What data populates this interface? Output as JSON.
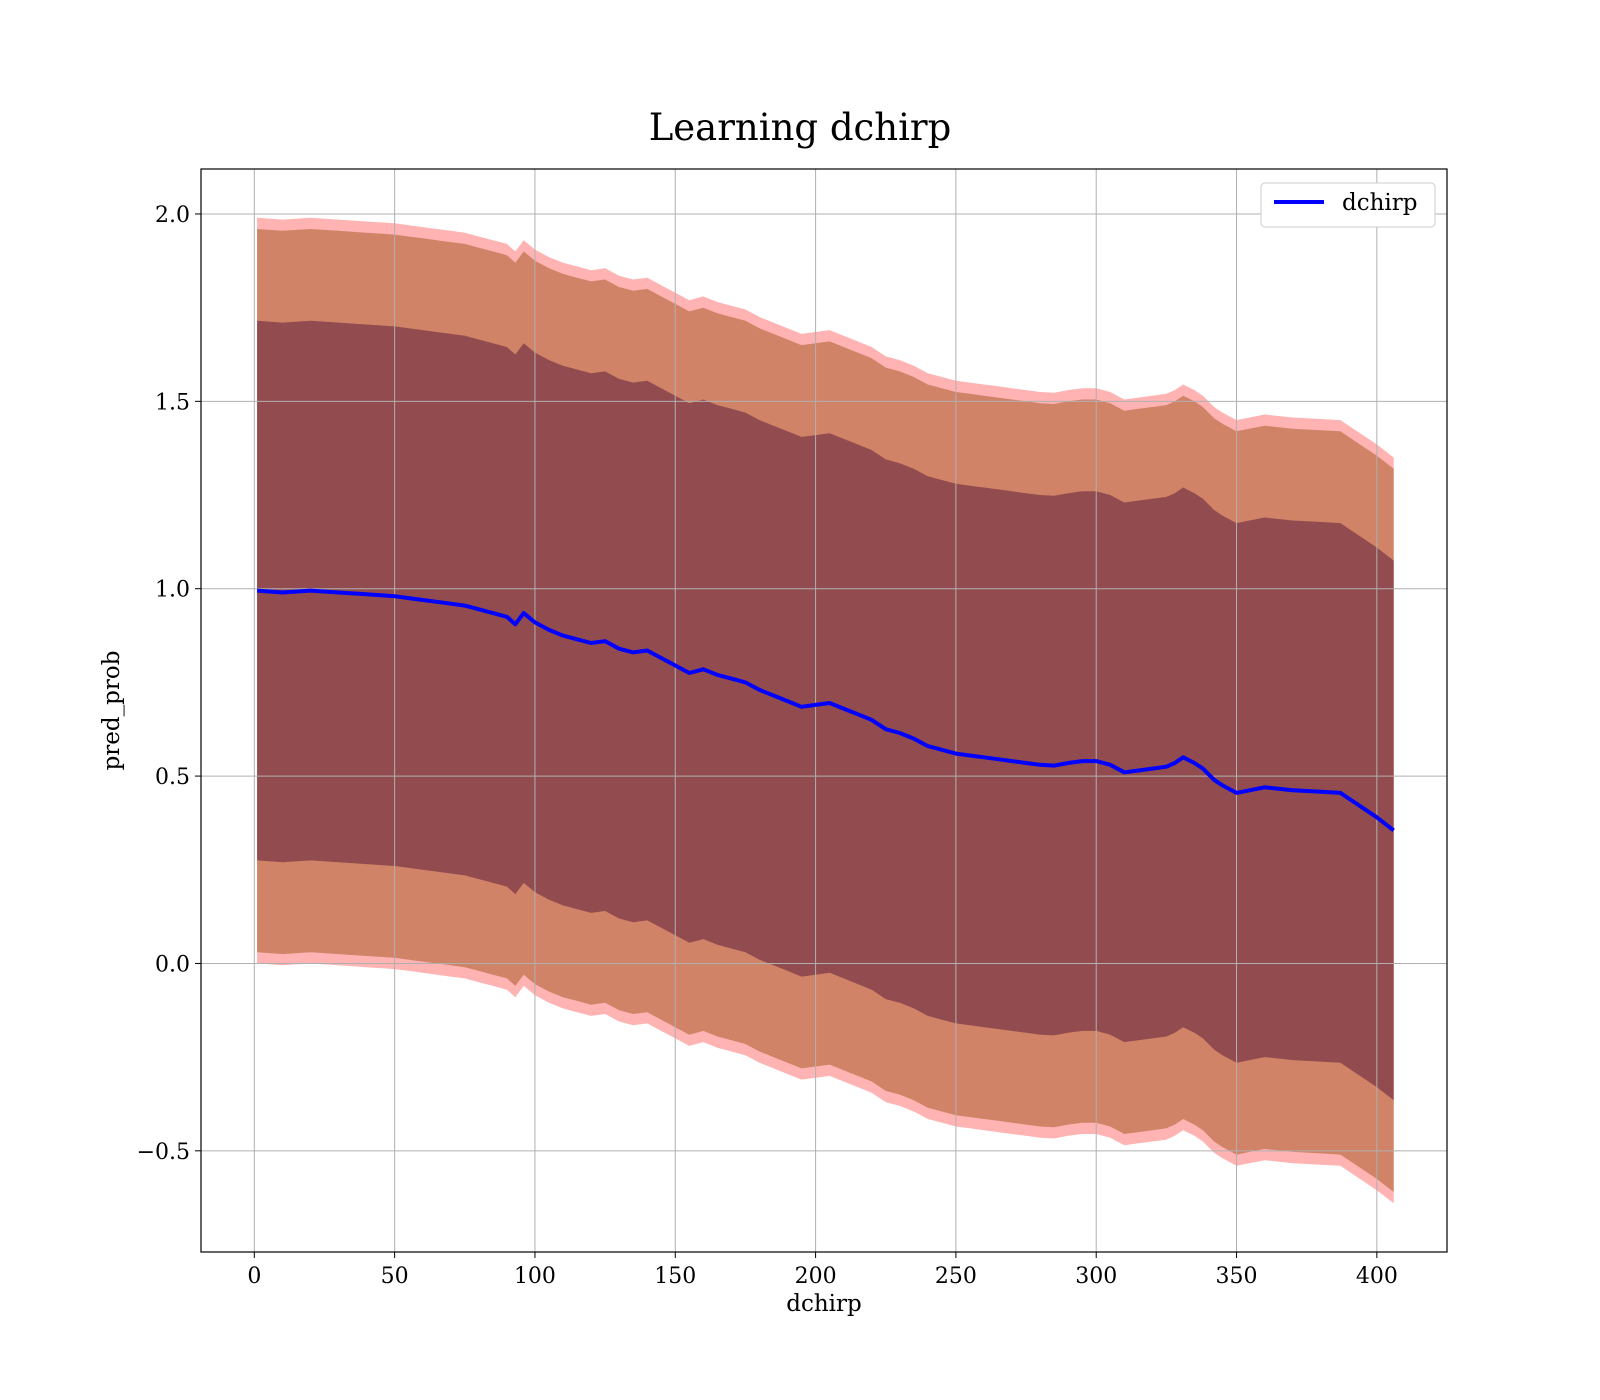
{
  "chart_data": {
    "type": "line",
    "title": "Learning dchirp",
    "xlabel": "dchirp",
    "ylabel": "pred_prob",
    "xlim": [
      -19,
      425
    ],
    "ylim": [
      -0.77,
      2.12
    ],
    "xticks": [
      0,
      50,
      100,
      150,
      200,
      250,
      300,
      350,
      400
    ],
    "xtick_labels": [
      "0",
      "50",
      "100",
      "150",
      "200",
      "250",
      "300",
      "350",
      "400"
    ],
    "yticks": [
      -0.5,
      0.0,
      0.5,
      1.0,
      1.5,
      2.0
    ],
    "ytick_labels": [
      "−0.5",
      "0.0",
      "0.5",
      "1.0",
      "1.5",
      "2.0"
    ],
    "grid": true,
    "legend_position": "top-right",
    "series": [
      {
        "name": "dchirp",
        "color": "#0000ff",
        "x": [
          1,
          10,
          20,
          30,
          40,
          50,
          55,
          60,
          65,
          70,
          75,
          80,
          85,
          90,
          93,
          96,
          100,
          105,
          110,
          115,
          120,
          125,
          130,
          135,
          140,
          145,
          150,
          155,
          160,
          165,
          170,
          175,
          180,
          185,
          190,
          195,
          200,
          205,
          210,
          215,
          220,
          225,
          230,
          235,
          240,
          245,
          250,
          255,
          260,
          265,
          270,
          275,
          280,
          285,
          290,
          295,
          300,
          305,
          310,
          315,
          320,
          325,
          328,
          331,
          335,
          338,
          342,
          345,
          350,
          360,
          370,
          380,
          387,
          400,
          406
        ],
        "y": [
          0.995,
          0.99,
          0.995,
          0.99,
          0.985,
          0.98,
          0.975,
          0.97,
          0.965,
          0.96,
          0.955,
          0.945,
          0.935,
          0.925,
          0.905,
          0.935,
          0.91,
          0.89,
          0.875,
          0.865,
          0.855,
          0.86,
          0.84,
          0.83,
          0.835,
          0.815,
          0.795,
          0.775,
          0.785,
          0.77,
          0.76,
          0.75,
          0.73,
          0.715,
          0.7,
          0.685,
          0.69,
          0.695,
          0.68,
          0.665,
          0.65,
          0.625,
          0.615,
          0.6,
          0.58,
          0.57,
          0.56,
          0.555,
          0.55,
          0.545,
          0.54,
          0.535,
          0.53,
          0.528,
          0.535,
          0.54,
          0.54,
          0.53,
          0.51,
          0.515,
          0.52,
          0.525,
          0.535,
          0.55,
          0.535,
          0.52,
          0.49,
          0.475,
          0.455,
          0.47,
          0.462,
          0.458,
          0.455,
          0.39,
          0.355
        ]
      }
    ],
    "bands": [
      {
        "half_width": 0.72,
        "color": "#6b2a40",
        "opacity": 0.62
      },
      {
        "half_width": 0.965,
        "color": "#b46638",
        "opacity": 0.62
      },
      {
        "half_width": 0.995,
        "color": "#ff8080",
        "opacity": 0.6
      }
    ]
  }
}
